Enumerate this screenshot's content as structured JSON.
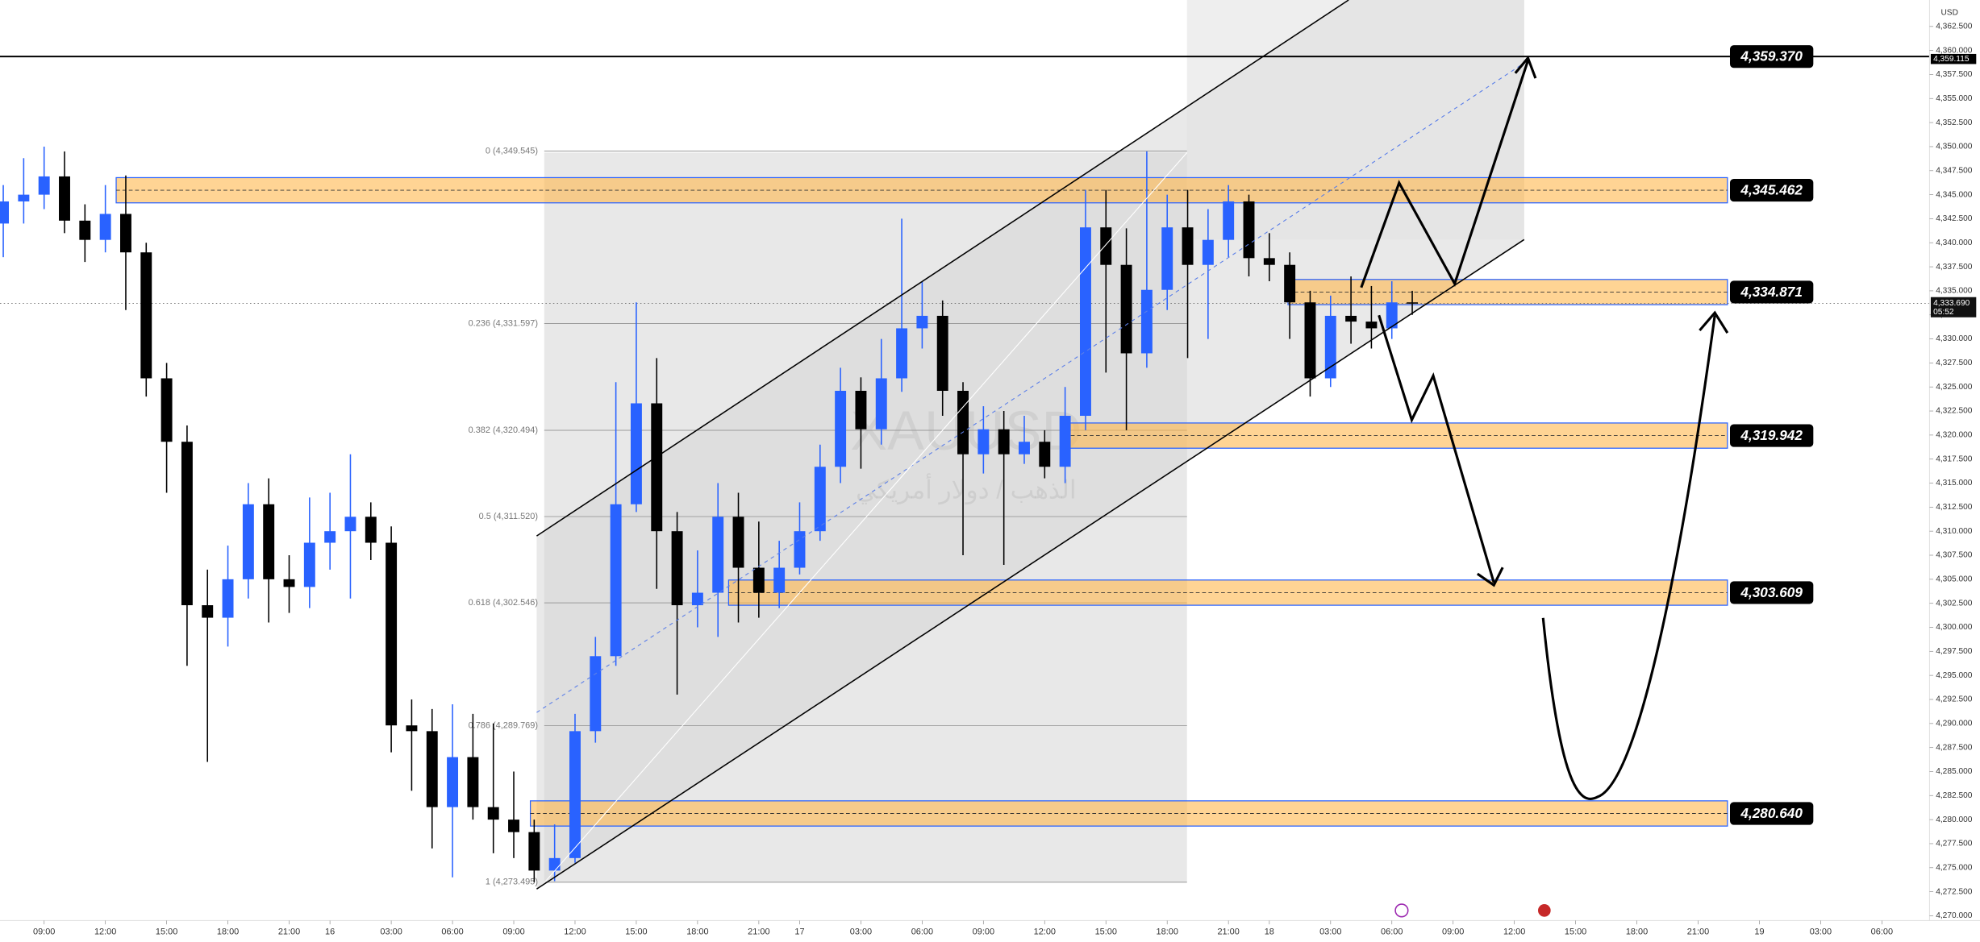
{
  "chart_data": {
    "type": "candlestick",
    "watermark": "XAUUSD",
    "watermark_subtitle": "الذهب / دولار أمريكي",
    "currency": "USD",
    "up_color": "#2962ff",
    "down_color": "#000000",
    "xlim": [
      -2.16,
      92.33
    ],
    "ylim": [
      4269.5,
      4365.25
    ],
    "xticks": [
      {
        "value": 0,
        "label": "09:00"
      },
      {
        "value": 3,
        "label": "12:00"
      },
      {
        "value": 6,
        "label": "15:00"
      },
      {
        "value": 9,
        "label": "18:00"
      },
      {
        "value": 12,
        "label": "21:00"
      },
      {
        "value": 14,
        "label": "16"
      },
      {
        "value": 17,
        "label": "03:00"
      },
      {
        "value": 20,
        "label": "06:00"
      },
      {
        "value": 23,
        "label": "09:00"
      },
      {
        "value": 26,
        "label": "12:00"
      },
      {
        "value": 29,
        "label": "15:00"
      },
      {
        "value": 32,
        "label": "18:00"
      },
      {
        "value": 35,
        "label": "21:00"
      },
      {
        "value": 37,
        "label": "17"
      },
      {
        "value": 40,
        "label": "03:00"
      },
      {
        "value": 43,
        "label": "06:00"
      },
      {
        "value": 46,
        "label": "09:00"
      },
      {
        "value": 49,
        "label": "12:00"
      },
      {
        "value": 52,
        "label": "15:00"
      },
      {
        "value": 55,
        "label": "18:00"
      },
      {
        "value": 58,
        "label": "21:00"
      },
      {
        "value": 60,
        "label": "18"
      },
      {
        "value": 63,
        "label": "03:00"
      },
      {
        "value": 66,
        "label": "06:00"
      },
      {
        "value": 69,
        "label": "09:00"
      },
      {
        "value": 72,
        "label": "12:00"
      },
      {
        "value": 75,
        "label": "15:00"
      },
      {
        "value": 78,
        "label": "18:00"
      },
      {
        "value": 81,
        "label": "21:00"
      },
      {
        "value": 84,
        "label": "19"
      },
      {
        "value": 87,
        "label": "03:00"
      },
      {
        "value": 90,
        "label": "06:00"
      }
    ],
    "yticks": [
      {
        "value": 4270,
        "label": "4,270.000"
      },
      {
        "value": 4272.5,
        "label": "4,272.500"
      },
      {
        "value": 4275,
        "label": "4,275.000"
      },
      {
        "value": 4277.5,
        "label": "4,277.500"
      },
      {
        "value": 4280,
        "label": "4,280.000"
      },
      {
        "value": 4282.5,
        "label": "4,282.500"
      },
      {
        "value": 4285,
        "label": "4,285.000"
      },
      {
        "value": 4287.5,
        "label": "4,287.500"
      },
      {
        "value": 4290,
        "label": "4,290.000"
      },
      {
        "value": 4292.5,
        "label": "4,292.500"
      },
      {
        "value": 4295,
        "label": "4,295.000"
      },
      {
        "value": 4297.5,
        "label": "4,297.500"
      },
      {
        "value": 4300,
        "label": "4,300.000"
      },
      {
        "value": 4302.5,
        "label": "4,302.500"
      },
      {
        "value": 4305,
        "label": "4,305.000"
      },
      {
        "value": 4307.5,
        "label": "4,307.500"
      },
      {
        "value": 4310,
        "label": "4,310.000"
      },
      {
        "value": 4312.5,
        "label": "4,312.500"
      },
      {
        "value": 4315,
        "label": "4,315.000"
      },
      {
        "value": 4317.5,
        "label": "4,317.500"
      },
      {
        "value": 4320,
        "label": "4,320.000"
      },
      {
        "value": 4322.5,
        "label": "4,322.500"
      },
      {
        "value": 4325,
        "label": "4,325.000"
      },
      {
        "value": 4327.5,
        "label": "4,327.500"
      },
      {
        "value": 4330,
        "label": "4,330.000"
      },
      {
        "value": 4332.5,
        "label": "4,332.500"
      },
      {
        "value": 4335,
        "label": "4,335.000"
      },
      {
        "value": 4337.5,
        "label": "4,337.500"
      },
      {
        "value": 4340,
        "label": "4,340.000"
      },
      {
        "value": 4342.5,
        "label": "4,342.500"
      },
      {
        "value": 4345,
        "label": "4,345.000"
      },
      {
        "value": 4347.5,
        "label": "4,347.500"
      },
      {
        "value": 4350,
        "label": "4,350.000"
      },
      {
        "value": 4352.5,
        "label": "4,352.500"
      },
      {
        "value": 4355,
        "label": "4,355.000"
      },
      {
        "value": 4357.5,
        "label": "4,357.500"
      },
      {
        "value": 4360,
        "label": "4,360.000"
      },
      {
        "value": 4362.5,
        "label": "4,362.500"
      }
    ],
    "x": [
      -2,
      -1,
      0,
      1,
      2,
      3,
      4,
      5,
      6,
      7,
      8,
      9,
      10,
      11,
      12,
      13,
      14,
      15,
      16,
      17,
      18,
      19,
      20,
      21,
      22,
      23,
      24,
      25,
      26,
      27,
      28,
      29,
      30,
      31,
      32,
      33,
      34,
      35,
      36,
      37,
      38,
      39,
      40,
      41,
      42,
      43,
      44,
      45,
      46,
      47,
      48,
      49,
      50,
      51,
      52,
      53,
      54,
      55,
      56,
      57,
      58,
      59,
      60,
      61,
      62,
      63,
      64,
      65,
      66,
      67
    ],
    "open": [
      4342.0,
      4344.3,
      4345.0,
      4346.9,
      4342.3,
      4340.3,
      4343.0,
      4339.0,
      4325.9,
      4319.3,
      4302.3,
      4301.0,
      4305.0,
      4312.8,
      4305.0,
      4304.2,
      4308.8,
      4310.0,
      4311.5,
      4308.8,
      4289.8,
      4289.2,
      4281.3,
      4286.5,
      4281.3,
      4280.0,
      4278.7,
      4274.7,
      4276.0,
      4289.2,
      4297.0,
      4312.8,
      4323.3,
      4310.0,
      4302.3,
      4303.6,
      4311.5,
      4306.2,
      4303.6,
      4306.2,
      4310.0,
      4316.7,
      4324.6,
      4320.6,
      4325.9,
      4331.1,
      4332.4,
      4324.6,
      4318.0,
      4320.6,
      4318.0,
      4319.3,
      4316.7,
      4322.0,
      4341.6,
      4337.7,
      4328.5,
      4335.1,
      4341.6,
      4337.7,
      4340.3,
      4344.3,
      4338.4,
      4337.7,
      4333.8,
      4325.9,
      4332.4,
      4331.8,
      4331.1,
      4333.8
    ],
    "high": [
      4346.0,
      4348.8,
      4350.0,
      4349.5,
      4344.0,
      4346.0,
      4347.0,
      4340.0,
      4327.5,
      4321.0,
      4306.0,
      4308.5,
      4315.0,
      4315.5,
      4307.5,
      4313.5,
      4314.0,
      4318.0,
      4313.0,
      4310.5,
      4292.5,
      4291.5,
      4292.0,
      4291.0,
      4290.0,
      4285.0,
      4280.0,
      4279.5,
      4291.0,
      4299.0,
      4325.5,
      4333.8,
      4328.0,
      4312.0,
      4308.0,
      4315.0,
      4314.0,
      4311.0,
      4309.0,
      4313.0,
      4319.0,
      4327.0,
      4326.0,
      4330.0,
      4342.5,
      4336.0,
      4334.0,
      4325.5,
      4323.0,
      4322.5,
      4322.0,
      4320.5,
      4325.0,
      4345.5,
      4345.5,
      4341.5,
      4349.5,
      4345.0,
      4345.5,
      4343.5,
      4346.0,
      4345.0,
      4341.0,
      4339.0,
      4335.0,
      4334.5,
      4336.5,
      4335.5,
      4336.0,
      4335.0
    ],
    "low": [
      4338.5,
      4342.0,
      4343.5,
      4341.0,
      4338.0,
      4339.0,
      4333.0,
      4324.0,
      4314.0,
      4296.0,
      4286.0,
      4298.0,
      4303.0,
      4300.5,
      4301.5,
      4302.0,
      4306.0,
      4303.0,
      4307.0,
      4287.0,
      4283.0,
      4277.0,
      4274.0,
      4280.0,
      4276.5,
      4276.0,
      4273.5,
      4273.6,
      4275.5,
      4288.0,
      4296.0,
      4312.0,
      4304.0,
      4293.0,
      4300.0,
      4299.0,
      4300.5,
      4301.0,
      4302.0,
      4305.5,
      4309.0,
      4315.0,
      4316.5,
      4319.0,
      4324.5,
      4329.0,
      4322.0,
      4307.5,
      4316.0,
      4306.5,
      4317.0,
      4315.5,
      4315.0,
      4320.5,
      4326.5,
      4320.5,
      4327.0,
      4333.0,
      4328.0,
      4330.0,
      4338.5,
      4336.5,
      4336.0,
      4330.0,
      4324.0,
      4325.0,
      4329.5,
      4329.0,
      4330.0,
      4332.5
    ],
    "close": [
      4344.3,
      4345.0,
      4346.9,
      4342.3,
      4340.3,
      4343.0,
      4339.0,
      4325.9,
      4319.3,
      4302.3,
      4301.0,
      4305.0,
      4312.8,
      4305.0,
      4304.2,
      4308.8,
      4310.0,
      4311.5,
      4308.8,
      4289.8,
      4289.2,
      4281.3,
      4286.5,
      4281.3,
      4280.0,
      4278.7,
      4274.7,
      4276.0,
      4289.2,
      4297.0,
      4312.8,
      4323.3,
      4310.0,
      4302.3,
      4303.6,
      4311.5,
      4306.2,
      4303.6,
      4306.2,
      4310.0,
      4316.7,
      4324.6,
      4320.6,
      4325.9,
      4331.1,
      4332.4,
      4324.6,
      4318.0,
      4320.6,
      4318.0,
      4319.3,
      4316.7,
      4322.0,
      4341.6,
      4337.7,
      4328.5,
      4335.1,
      4341.6,
      4337.7,
      4340.3,
      4344.3,
      4338.4,
      4337.7,
      4333.8,
      4325.9,
      4332.4,
      4331.8,
      4331.1,
      4333.8,
      4333.7
    ],
    "levels": [
      {
        "value": 4359.37,
        "label": "4,359.370"
      },
      {
        "value": 4345.462,
        "label": "4,345.462"
      },
      {
        "value": 4334.871,
        "label": "4,334.871"
      },
      {
        "value": 4319.942,
        "label": "4,319.942"
      },
      {
        "value": 4303.609,
        "label": "4,303.609"
      },
      {
        "value": 4280.64,
        "label": "4,280.640"
      }
    ],
    "fib_levels": [
      {
        "value": 4349.545,
        "label": "0 (4,349.545)"
      },
      {
        "value": 4331.597,
        "label": "0.236 (4,331.597)"
      },
      {
        "value": 4320.494,
        "label": "0.382 (4,320.494)"
      },
      {
        "value": 4311.52,
        "label": "0.5 (4,311.520)"
      },
      {
        "value": 4302.546,
        "label": "0.618 (4,302.546)"
      },
      {
        "value": 4289.769,
        "label": "0.786 (4,289.769)"
      },
      {
        "value": 4273.495,
        "label": "1 (4,273.495)"
      }
    ],
    "axis_marker": {
      "value": 4359.115,
      "label": "4,359.115"
    },
    "last_price": {
      "value": 4333.69,
      "label": "4,333.690"
    },
    "countdown": "05:52"
  }
}
